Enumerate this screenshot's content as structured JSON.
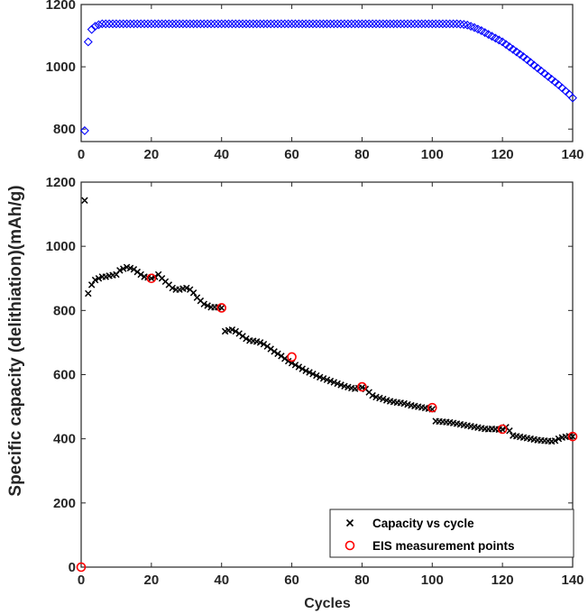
{
  "chart_data": [
    {
      "type": "scatter",
      "panel": "top",
      "xlim": [
        0,
        140
      ],
      "ylim": [
        760,
        1200
      ],
      "xticks": [
        0,
        20,
        40,
        60,
        80,
        100,
        120,
        140
      ],
      "yticks": [
        800,
        1000,
        1200
      ],
      "grid": false,
      "series": [
        {
          "marker": "diamond",
          "color": "#0000ff",
          "x": [
            1,
            2,
            3,
            4,
            5,
            6,
            7,
            8,
            9,
            10,
            11,
            12,
            13,
            14,
            15,
            16,
            17,
            18,
            19,
            20,
            21,
            22,
            23,
            24,
            25,
            26,
            27,
            28,
            29,
            30,
            31,
            32,
            33,
            34,
            35,
            36,
            37,
            38,
            39,
            40,
            41,
            42,
            43,
            44,
            45,
            46,
            47,
            48,
            49,
            50,
            51,
            52,
            53,
            54,
            55,
            56,
            57,
            58,
            59,
            60,
            61,
            62,
            63,
            64,
            65,
            66,
            67,
            68,
            69,
            70,
            71,
            72,
            73,
            74,
            75,
            76,
            77,
            78,
            79,
            80,
            81,
            82,
            83,
            84,
            85,
            86,
            87,
            88,
            89,
            90,
            91,
            92,
            93,
            94,
            95,
            96,
            97,
            98,
            99,
            100,
            101,
            102,
            103,
            104,
            105,
            106,
            107,
            108,
            109,
            110,
            111,
            112,
            113,
            114,
            115,
            116,
            117,
            118,
            119,
            120,
            121,
            122,
            123,
            124,
            125,
            126,
            127,
            128,
            129,
            130,
            131,
            132,
            133,
            134,
            135,
            136,
            137,
            138,
            139,
            140
          ],
          "y": [
            795,
            1080,
            1120,
            1130,
            1135,
            1138,
            1138,
            1138,
            1138,
            1138,
            1138,
            1138,
            1138,
            1138,
            1138,
            1138,
            1138,
            1138,
            1138,
            1138,
            1138,
            1138,
            1138,
            1138,
            1138,
            1138,
            1138,
            1138,
            1138,
            1138,
            1138,
            1138,
            1138,
            1138,
            1138,
            1138,
            1138,
            1138,
            1138,
            1138,
            1138,
            1138,
            1138,
            1138,
            1138,
            1138,
            1138,
            1138,
            1138,
            1138,
            1138,
            1138,
            1138,
            1138,
            1138,
            1138,
            1138,
            1138,
            1138,
            1138,
            1138,
            1138,
            1138,
            1138,
            1138,
            1138,
            1138,
            1138,
            1138,
            1138,
            1138,
            1138,
            1138,
            1138,
            1138,
            1138,
            1138,
            1138,
            1138,
            1138,
            1138,
            1138,
            1138,
            1138,
            1138,
            1138,
            1138,
            1138,
            1138,
            1138,
            1138,
            1138,
            1138,
            1138,
            1138,
            1138,
            1138,
            1138,
            1138,
            1138,
            1138,
            1138,
            1138,
            1138,
            1138,
            1138,
            1138,
            1137,
            1136,
            1134,
            1130,
            1126,
            1121,
            1116,
            1110,
            1104,
            1098,
            1092,
            1086,
            1080,
            1072,
            1064,
            1056,
            1048,
            1040,
            1032,
            1023,
            1014,
            1005,
            996,
            987,
            978,
            969,
            960,
            951,
            942,
            932,
            922,
            912,
            900
          ]
        }
      ]
    },
    {
      "type": "scatter",
      "panel": "bottom",
      "xlabel": "Cycles",
      "ylabel": "Specific capacity (delithiation)(mAh/g)",
      "xlim": [
        0,
        140
      ],
      "ylim": [
        0,
        1200
      ],
      "xticks": [
        0,
        20,
        40,
        60,
        80,
        100,
        120,
        140
      ],
      "yticks": [
        0,
        200,
        400,
        600,
        800,
        1000,
        1200
      ],
      "grid": false,
      "legend": "bottom-right",
      "series": [
        {
          "name": "Capacity vs cycle",
          "marker": "x",
          "color": "#000000",
          "x": [
            1,
            2,
            3,
            4,
            5,
            6,
            7,
            8,
            9,
            10,
            11,
            12,
            13,
            14,
            15,
            16,
            17,
            18,
            19,
            20,
            21,
            22,
            23,
            24,
            25,
            26,
            27,
            28,
            29,
            30,
            31,
            32,
            33,
            34,
            35,
            36,
            37,
            38,
            39,
            40,
            41,
            42,
            43,
            44,
            45,
            46,
            47,
            48,
            49,
            50,
            51,
            52,
            53,
            54,
            55,
            56,
            57,
            58,
            59,
            60,
            61,
            62,
            63,
            64,
            65,
            66,
            67,
            68,
            69,
            70,
            71,
            72,
            73,
            74,
            75,
            76,
            77,
            78,
            79,
            80,
            81,
            82,
            83,
            84,
            85,
            86,
            87,
            88,
            89,
            90,
            91,
            92,
            93,
            94,
            95,
            96,
            97,
            98,
            99,
            100,
            101,
            102,
            103,
            104,
            105,
            106,
            107,
            108,
            109,
            110,
            111,
            112,
            113,
            114,
            115,
            116,
            117,
            118,
            119,
            120,
            121,
            122,
            123,
            124,
            125,
            126,
            127,
            128,
            129,
            130,
            131,
            132,
            133,
            134,
            135,
            136,
            137,
            138,
            139,
            140
          ],
          "y": [
            1143,
            853,
            880,
            895,
            900,
            905,
            905,
            908,
            910,
            912,
            925,
            930,
            935,
            932,
            928,
            920,
            912,
            905,
            903,
            900,
            905,
            912,
            900,
            890,
            880,
            870,
            865,
            865,
            868,
            870,
            865,
            855,
            840,
            830,
            820,
            815,
            810,
            810,
            810,
            808,
            735,
            738,
            740,
            735,
            728,
            720,
            712,
            706,
            705,
            703,
            700,
            695,
            688,
            680,
            672,
            665,
            658,
            650,
            642,
            636,
            630,
            624,
            618,
            612,
            607,
            602,
            597,
            592,
            588,
            584,
            580,
            576,
            572,
            568,
            564,
            561,
            558,
            556,
            558,
            560,
            555,
            545,
            535,
            530,
            527,
            524,
            520,
            517,
            515,
            513,
            512,
            510,
            507,
            504,
            502,
            500,
            498,
            496,
            494,
            492,
            455,
            454,
            453,
            452,
            451,
            449,
            447,
            445,
            443,
            441,
            439,
            437,
            435,
            433,
            431,
            430,
            431,
            430,
            429,
            429,
            436,
            425,
            410,
            408,
            406,
            404,
            402,
            400,
            398,
            396,
            395,
            394,
            393,
            392,
            394,
            400,
            404,
            406,
            408,
            407
          ]
        },
        {
          "name": "EIS measurement points",
          "marker": "circle",
          "color": "#ff0000",
          "x": [
            0,
            20,
            40,
            60,
            80,
            100,
            120,
            140
          ],
          "y": [
            0,
            900,
            808,
            655,
            562,
            497,
            430,
            407
          ]
        }
      ]
    }
  ]
}
